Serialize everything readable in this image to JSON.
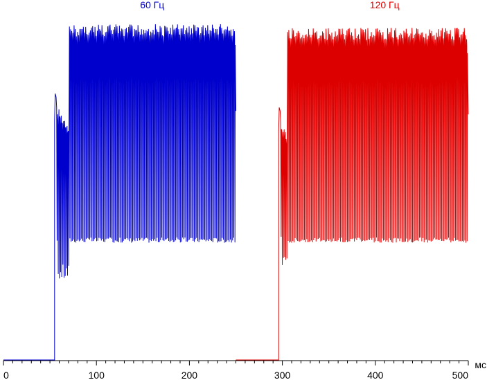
{
  "chart_data": {
    "type": "line",
    "title": "",
    "xlabel": "",
    "ylabel": "",
    "x_unit_label": "мс",
    "xlim": [
      0,
      500
    ],
    "x_ticks": [
      0,
      100,
      200,
      300,
      400,
      500
    ],
    "x_tick_labels": [
      "0",
      "100",
      "200",
      "300",
      "400",
      "500"
    ],
    "y_ticks_shown": false,
    "grid": false,
    "legend": "none",
    "series": [
      {
        "name": "60 Гц",
        "color": "#0000cc",
        "x_start": 0,
        "x_end": 250,
        "onset": 55,
        "settle": 70,
        "stable_high": 0.97,
        "stable_low": 0.34,
        "initial_peak": 0.77,
        "initial_low": 0.23,
        "pulses_per_ms": 0.8
      },
      {
        "name": "120 Гц",
        "color": "#dd0000",
        "x_start": 250,
        "x_end": 500,
        "onset": 296,
        "settle": 305,
        "stable_high": 0.96,
        "stable_low": 0.34,
        "initial_peak": 0.73,
        "initial_low": 0.27,
        "pulses_per_ms": 0.8
      }
    ]
  }
}
